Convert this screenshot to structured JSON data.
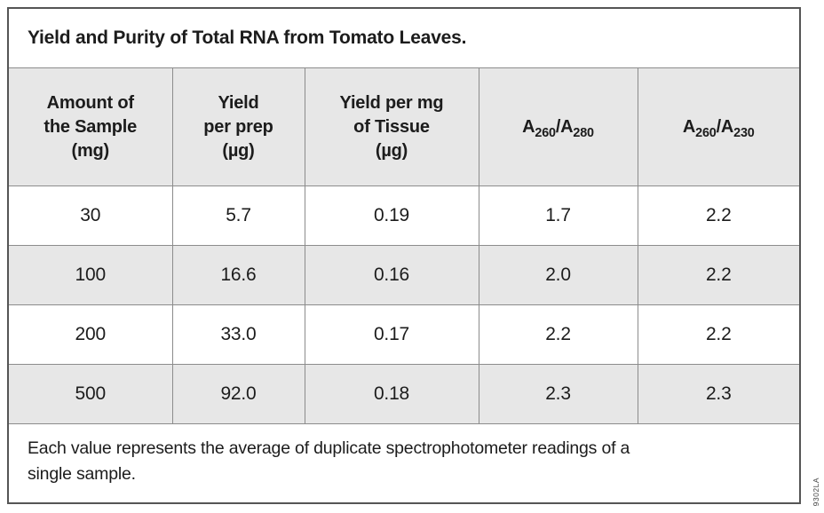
{
  "colors": {
    "background": "#ffffff",
    "header_bg": "#e7e7e7",
    "alt_row_bg": "#e7e7e7",
    "grid_line": "#8c8c8c",
    "outer_border": "#555555",
    "text": "#1c1c1c"
  },
  "table": {
    "title": "Yield and Purity of Total RNA from Tomato Leaves.",
    "columns": [
      "Amount of\nthe Sample\n(mg)",
      "Yield\nper prep\n(µg)",
      "Yield per mg\nof Tissue\n(µg)",
      "A_{260}/A_{280}",
      "A_{260}/A_{230}"
    ],
    "rows": [
      [
        "30",
        "5.7",
        "0.19",
        "1.7",
        "2.2"
      ],
      [
        "100",
        "16.6",
        "0.16",
        "2.0",
        "2.2"
      ],
      [
        "200",
        "33.0",
        "0.17",
        "2.2",
        "2.2"
      ],
      [
        "500",
        "92.0",
        "0.18",
        "2.3",
        "2.3"
      ]
    ],
    "footnote": "Each value represents the average of duplicate spectrophotometer readings of a single sample."
  },
  "figure_code": "9302LA",
  "chart_data": {
    "type": "table",
    "title": "Yield and Purity of Total RNA from Tomato Leaves.",
    "columns": [
      "Amount of the Sample (mg)",
      "Yield per prep (µg)",
      "Yield per mg of Tissue (µg)",
      "A260/A280",
      "A260/A230"
    ],
    "rows": [
      [
        30,
        5.7,
        0.19,
        1.7,
        2.2
      ],
      [
        100,
        16.6,
        0.16,
        2.0,
        2.2
      ],
      [
        200,
        33.0,
        0.17,
        2.2,
        2.2
      ],
      [
        500,
        92.0,
        0.18,
        2.3,
        2.3
      ]
    ],
    "footnote": "Each value represents the average of duplicate spectrophotometer readings of a single sample.",
    "legend_position": "none",
    "grid": true
  }
}
